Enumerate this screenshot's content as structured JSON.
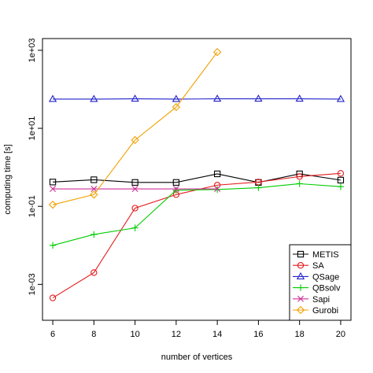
{
  "chart_data": {
    "type": "line",
    "xlabel": "number of vertices",
    "ylabel": "computing time [s]",
    "y_scale": "log10",
    "x_ticks": [
      6,
      8,
      10,
      12,
      14,
      16,
      18,
      20
    ],
    "x_tick_labels": [
      "6",
      "8",
      "10",
      "12",
      "14",
      "16",
      "18",
      "20"
    ],
    "y_ticks": [
      0.001,
      0.1,
      10,
      1000
    ],
    "y_tick_labels": [
      "1e-03",
      "1e-01",
      "1e+01",
      "1e+03"
    ],
    "xlim": [
      5.5,
      20.5
    ],
    "ylim": [
      0.00012,
      2000
    ],
    "grid": false,
    "legend_position": "bottom-right",
    "series": [
      {
        "name": "METIS",
        "color": "#000000",
        "marker": "square",
        "x": [
          6,
          8,
          10,
          12,
          14,
          16,
          18,
          20
        ],
        "y": [
          0.42,
          0.48,
          0.41,
          0.41,
          0.68,
          0.41,
          0.68,
          0.47
        ]
      },
      {
        "name": "SA",
        "color": "#e41a1c",
        "marker": "circle",
        "x": [
          6,
          8,
          10,
          12,
          14,
          16,
          18,
          20
        ],
        "y": [
          0.00045,
          0.002,
          0.09,
          0.2,
          0.35,
          0.42,
          0.58,
          0.7
        ]
      },
      {
        "name": "QSage",
        "color": "#2222cc",
        "marker": "triangle",
        "x": [
          6,
          8,
          10,
          12,
          14,
          16,
          18,
          20
        ],
        "y": [
          56,
          56,
          57,
          56,
          57,
          57,
          57,
          56
        ]
      },
      {
        "name": "QBsolv",
        "color": "#00cc00",
        "marker": "plus",
        "x": [
          6,
          8,
          10,
          12,
          14,
          16,
          18,
          20
        ],
        "y": [
          0.01,
          0.019,
          0.028,
          0.26,
          0.27,
          0.3,
          0.38,
          0.32
        ]
      },
      {
        "name": "Sapi",
        "color": "#cc3399",
        "marker": "cross",
        "x": [
          6,
          8,
          10,
          12,
          14
        ],
        "y": [
          0.28,
          0.28,
          0.28,
          0.28,
          0.28
        ]
      },
      {
        "name": "Gurobi",
        "color": "#f0a000",
        "marker": "diamond",
        "x": [
          6,
          8,
          10,
          12,
          14
        ],
        "y": [
          0.11,
          0.2,
          5,
          35,
          900
        ]
      }
    ]
  }
}
